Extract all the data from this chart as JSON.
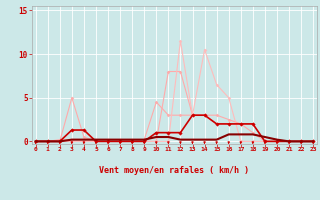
{
  "x": [
    0,
    1,
    2,
    3,
    4,
    5,
    6,
    7,
    8,
    9,
    10,
    11,
    12,
    13,
    14,
    15,
    16,
    17,
    18,
    19,
    20,
    21,
    22,
    23
  ],
  "series": [
    {
      "y": [
        0,
        0,
        0,
        5,
        0.5,
        0,
        0,
        0,
        0,
        0,
        0,
        8,
        8,
        3,
        3,
        2,
        2,
        2,
        2,
        0,
        0,
        0,
        0,
        0
      ],
      "color": "#ffaaaa",
      "lw": 0.8,
      "marker": "D",
      "ms": 1.5,
      "zorder": 2
    },
    {
      "y": [
        0,
        0,
        0.2,
        0.2,
        0.2,
        0.2,
        0.2,
        0.2,
        0.2,
        0.2,
        4.5,
        3,
        3,
        3,
        3,
        3,
        2.5,
        2,
        1,
        0,
        0,
        0,
        0,
        0
      ],
      "color": "#ffaaaa",
      "lw": 0.8,
      "marker": "D",
      "ms": 1.5,
      "zorder": 2
    },
    {
      "y": [
        0,
        0,
        0,
        0,
        0,
        0,
        0,
        0,
        0,
        0,
        0,
        0,
        11.5,
        3,
        10.5,
        6.5,
        5,
        0,
        0,
        0,
        0,
        0,
        0,
        0
      ],
      "color": "#ffbbbb",
      "lw": 0.8,
      "marker": "D",
      "ms": 1.5,
      "zorder": 2
    },
    {
      "y": [
        0,
        0,
        0,
        1.3,
        1.3,
        0,
        0,
        0,
        0,
        0,
        1,
        1,
        1,
        3,
        3,
        2,
        2,
        2,
        2,
        0,
        0,
        0,
        0,
        0
      ],
      "color": "#cc0000",
      "lw": 1.2,
      "marker": "D",
      "ms": 1.8,
      "zorder": 3
    },
    {
      "y": [
        0,
        0,
        0,
        0.2,
        0.2,
        0.2,
        0.2,
        0.2,
        0.2,
        0.2,
        0.5,
        0.5,
        0.2,
        0.2,
        0.2,
        0.2,
        0.8,
        0.8,
        0.8,
        0.5,
        0.2,
        0,
        0,
        0
      ],
      "color": "#880000",
      "lw": 1.5,
      "marker": null,
      "ms": 0,
      "zorder": 4
    }
  ],
  "xlim": [
    -0.3,
    23.3
  ],
  "ylim": [
    -0.3,
    15.5
  ],
  "yticks": [
    0,
    5,
    10,
    15
  ],
  "xticks": [
    0,
    1,
    2,
    3,
    4,
    5,
    6,
    7,
    8,
    9,
    10,
    11,
    12,
    13,
    14,
    15,
    16,
    17,
    18,
    19,
    20,
    21,
    22,
    23
  ],
  "xlabel": "Vent moyen/en rafales ( km/h )",
  "bg_color": "#cce8e8",
  "grid_color": "#ffffff",
  "tick_color": "#cc0000",
  "label_color": "#cc0000",
  "arrow_color": "#cc0000",
  "spine_color": "#aaaaaa"
}
